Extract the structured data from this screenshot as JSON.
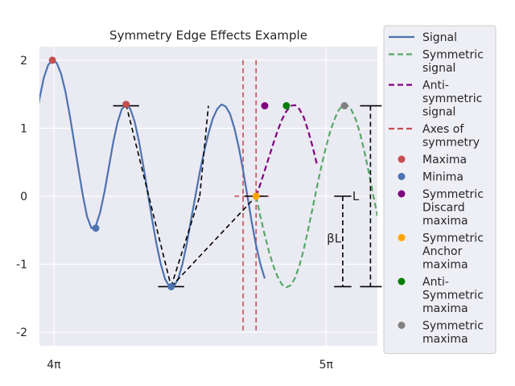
{
  "chart_data": {
    "type": "line",
    "title": "Symmetry Edge Effects Example",
    "xlabel": "",
    "ylabel": "",
    "xlim": [
      12.4,
      16.3
    ],
    "ylim": [
      -2.2,
      2.2
    ],
    "grid": true,
    "legend_placement": "outside-right",
    "x_ticks": [
      {
        "value": 12.566,
        "label": "4π"
      },
      {
        "value": 15.708,
        "label": "5π"
      }
    ],
    "y_ticks": [
      {
        "value": 2,
        "label": "2"
      },
      {
        "value": 1,
        "label": "1"
      },
      {
        "value": 0,
        "label": "0"
      },
      {
        "value": -1,
        "label": "-1"
      },
      {
        "value": -2,
        "label": "-2"
      }
    ],
    "series": [
      {
        "name": "Signal",
        "style": "solid",
        "color": "#4c72b0",
        "x": [
          12.3,
          12.35,
          12.4,
          12.45,
          12.5,
          12.55,
          12.6,
          12.65,
          12.7,
          12.75,
          12.8,
          12.85,
          12.9,
          12.95,
          13.0,
          13.05,
          13.1,
          13.15,
          13.2,
          13.25,
          13.3,
          13.35,
          13.4,
          13.45,
          13.5,
          13.55,
          13.6,
          13.65,
          13.7,
          13.75,
          13.8,
          13.85,
          13.9,
          13.95,
          14.0,
          14.05,
          14.1,
          14.15,
          14.2,
          14.25,
          14.3,
          14.35,
          14.4,
          14.45,
          14.5,
          14.55,
          14.6,
          14.65,
          14.7,
          14.75,
          14.8,
          14.85,
          14.9,
          14.95,
          15.0
        ],
        "y": [
          0.62,
          1.05,
          1.43,
          1.74,
          1.93,
          2.0,
          1.96,
          1.8,
          1.54,
          1.19,
          0.8,
          0.4,
          0.02,
          -0.3,
          -0.47,
          -0.44,
          -0.24,
          0.06,
          0.42,
          0.78,
          1.08,
          1.28,
          1.35,
          1.28,
          1.09,
          0.8,
          0.44,
          0.05,
          -0.34,
          -0.7,
          -1.0,
          -1.22,
          -1.33,
          -1.33,
          -1.22,
          -1.0,
          -0.7,
          -0.34,
          0.0,
          0.35,
          0.65,
          0.92,
          1.14,
          1.28,
          1.35,
          1.32,
          1.21,
          1.0,
          0.72,
          0.38,
          0.0,
          -0.38,
          -0.72,
          -1.0,
          -1.21
        ]
      },
      {
        "name": "Symmetric signal",
        "style": "dashed",
        "color": "#55a868",
        "x": [
          14.9,
          14.95,
          15.0,
          15.05,
          15.1,
          15.15,
          15.2,
          15.25,
          15.3,
          15.35,
          15.4,
          15.45,
          15.5,
          15.55,
          15.6,
          15.65,
          15.7,
          15.75,
          15.8,
          15.85,
          15.9,
          15.95,
          16.0,
          16.05,
          16.1,
          16.15,
          16.2,
          16.25,
          16.3
        ],
        "y": [
          0.0,
          -0.3,
          -0.57,
          -0.82,
          -1.03,
          -1.19,
          -1.3,
          -1.34,
          -1.31,
          -1.2,
          -1.02,
          -0.78,
          -0.5,
          -0.19,
          0.12,
          0.42,
          0.69,
          0.93,
          1.12,
          1.26,
          1.34,
          1.34,
          1.27,
          1.13,
          0.92,
          0.66,
          0.36,
          0.03,
          -0.29
        ]
      },
      {
        "name": "Anti-symmetric signal",
        "style": "dashed",
        "color": "#800080",
        "x": [
          14.9,
          14.95,
          15.0,
          15.05,
          15.1,
          15.15,
          15.2,
          15.25,
          15.3,
          15.35,
          15.4,
          15.45,
          15.5,
          15.55,
          15.6
        ],
        "y": [
          0.0,
          0.18,
          0.38,
          0.58,
          0.78,
          0.97,
          1.13,
          1.25,
          1.33,
          1.34,
          1.28,
          1.16,
          0.97,
          0.74,
          0.48
        ]
      }
    ],
    "axes_of_symmetry": {
      "name": "Axes of symmetry",
      "color": "#c44e52",
      "vertical_x": [
        14.75,
        14.9
      ],
      "horizontal": {
        "y": 0,
        "x_start": 14.65,
        "x_end": 15.05
      }
    },
    "scatter": [
      {
        "name": "Maxima",
        "color": "#c44e52",
        "points": [
          [
            12.55,
            2.0
          ],
          [
            13.4,
            1.35
          ]
        ]
      },
      {
        "name": "Minima",
        "color": "#4c72b0",
        "points": [
          [
            13.05,
            -0.47
          ],
          [
            13.92,
            -1.33
          ]
        ]
      },
      {
        "name": "Symmetric Discard maxima",
        "color": "#800080",
        "points": [
          [
            15.0,
            1.33
          ]
        ]
      },
      {
        "name": "Symmetric Anchor maxima",
        "color": "#ffa500",
        "points": [
          [
            14.9,
            0.0
          ]
        ]
      },
      {
        "name": "Anti-Symmetric maxima",
        "color": "#008000",
        "points": [
          [
            15.25,
            1.33
          ]
        ]
      },
      {
        "name": "Symmetric maxima",
        "color": "#808080",
        "points": [
          [
            15.92,
            1.33
          ]
        ]
      }
    ],
    "construction_lines": {
      "color": "#000000",
      "dashed_segments": [
        [
          [
            13.4,
            1.35
          ],
          [
            13.92,
            -1.33
          ]
        ],
        [
          [
            13.92,
            -1.33
          ],
          [
            14.25,
            0.0
          ]
        ],
        [
          [
            14.25,
            0.0
          ],
          [
            14.35,
            1.33
          ]
        ],
        [
          [
            13.92,
            -1.33
          ],
          [
            14.9,
            0.0
          ]
        ]
      ],
      "h_caps": [
        {
          "y": 1.33,
          "x1": 13.25,
          "x2": 13.55
        },
        {
          "y": -1.33,
          "x1": 13.77,
          "x2": 14.07
        },
        {
          "y": 0.0,
          "x1": 14.77,
          "x2": 15.03
        },
        {
          "y": 0.0,
          "x1": 15.8,
          "x2": 16.0
        },
        {
          "y": -1.33,
          "x1": 15.8,
          "x2": 16.0
        },
        {
          "y": 1.33,
          "x1": 16.1,
          "x2": 16.35
        },
        {
          "y": -1.33,
          "x1": 16.1,
          "x2": 16.35
        }
      ],
      "v_bars": [
        {
          "x": 15.9,
          "y1": 0.0,
          "y2": -1.33
        },
        {
          "x": 16.22,
          "y1": 1.33,
          "y2": -1.33
        }
      ]
    },
    "annotations": [
      {
        "text": "βL",
        "x": 15.8,
        "y": -0.62
      },
      {
        "text": "L",
        "x": 16.05,
        "y": 0.0
      }
    ]
  },
  "legend": [
    {
      "kind": "line",
      "style": "solid",
      "color": "#4c72b0",
      "lines": [
        "Signal"
      ]
    },
    {
      "kind": "line",
      "style": "dashed",
      "color": "#55a868",
      "lines": [
        "Symmetric",
        "signal"
      ]
    },
    {
      "kind": "line",
      "style": "dashed",
      "color": "#800080",
      "lines": [
        "Anti-",
        "symmetric",
        "signal"
      ]
    },
    {
      "kind": "line",
      "style": "dashed",
      "color": "#c44e52",
      "lines": [
        "Axes of",
        "symmetry"
      ]
    },
    {
      "kind": "dot",
      "color": "#c44e52",
      "lines": [
        "Maxima"
      ]
    },
    {
      "kind": "dot",
      "color": "#4c72b0",
      "lines": [
        "Minima"
      ]
    },
    {
      "kind": "dot",
      "color": "#800080",
      "lines": [
        "Symmetric",
        "Discard",
        "maxima"
      ]
    },
    {
      "kind": "dot",
      "color": "#ffa500",
      "lines": [
        "Symmetric",
        "Anchor",
        "maxima"
      ]
    },
    {
      "kind": "dot",
      "color": "#008000",
      "lines": [
        "Anti-",
        "Symmetric",
        "maxima"
      ]
    },
    {
      "kind": "dot",
      "color": "#808080",
      "lines": [
        "Symmetric",
        "maxima"
      ]
    }
  ]
}
